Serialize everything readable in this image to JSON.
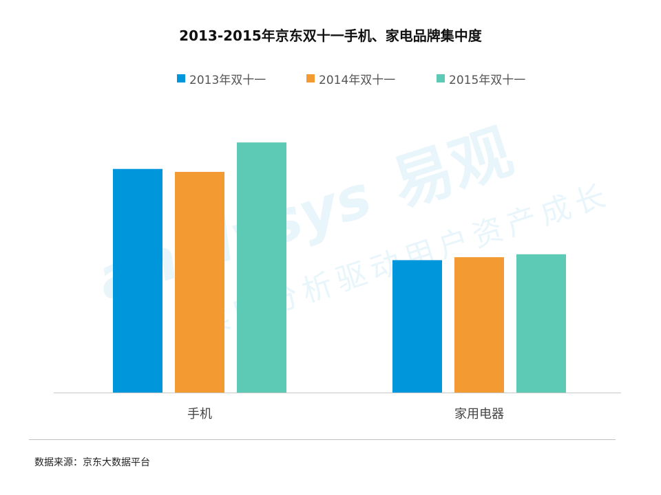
{
  "watermark": {
    "brand": "analysys",
    "brand_cn": "易观",
    "slogan": "实时分析驱动用户资产成长"
  },
  "chart_data": {
    "type": "bar",
    "title": "2013-2015年京东双十一手机、家电品牌集中度",
    "categories": [
      "手机",
      "家用电器"
    ],
    "series": [
      {
        "name": "2013年双十一",
        "color": "#0096DB",
        "values": [
          0.76,
          0.45
        ]
      },
      {
        "name": "2014年双十一",
        "color": "#F49A33",
        "values": [
          0.75,
          0.46
        ]
      },
      {
        "name": "2015年双十一",
        "color": "#5DCAB6",
        "values": [
          0.85,
          0.47
        ]
      }
    ],
    "ylim": [
      0,
      1.0
    ],
    "grid": false,
    "legend": "top-center",
    "source": "数据来源：京东大数据平台"
  }
}
